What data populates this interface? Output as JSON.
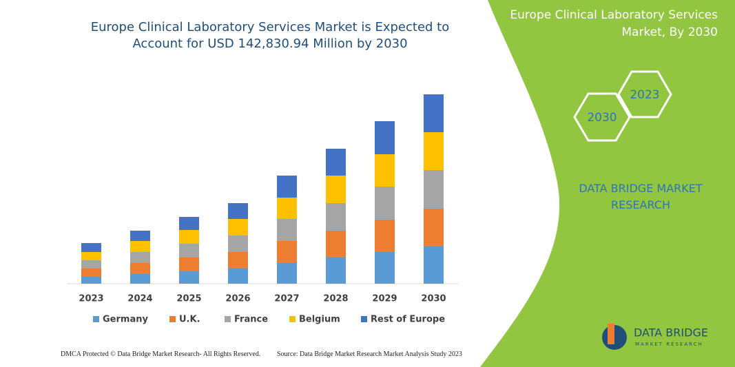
{
  "chart_data": {
    "type": "stacked-bar",
    "title": "Europe Clinical Laboratory Services Market is Expected to Account for USD 142,830.94 Million by 2030",
    "categories": [
      "2023",
      "2024",
      "2025",
      "2026",
      "2027",
      "2028",
      "2029",
      "2030"
    ],
    "series": [
      {
        "name": "Germany",
        "color": "#5b9bd5",
        "values": [
          10,
          14,
          18,
          22,
          30,
          38,
          46,
          54
        ]
      },
      {
        "name": "U.K.",
        "color": "#ed7d31",
        "values": [
          12,
          16,
          20,
          24,
          32,
          39,
          47,
          55
        ]
      },
      {
        "name": "France",
        "color": "#a5a5a5",
        "values": [
          12,
          16,
          20,
          24,
          32,
          40,
          48,
          56
        ]
      },
      {
        "name": "Belgium",
        "color": "#ffc000",
        "values": [
          12,
          16,
          20,
          24,
          31,
          40,
          47,
          55
        ]
      },
      {
        "name": "Rest of Europe",
        "color": "#4472c4",
        "values": [
          13,
          15,
          19,
          23,
          32,
          39,
          48,
          55
        ]
      }
    ],
    "ylim": [
      0,
      300
    ]
  },
  "panel": {
    "title": "Europe Clinical Laboratory Services Market, By 2030",
    "hex_back": "2023",
    "hex_front": "2030",
    "brand": "DATA BRIDGE MARKET RESEARCH",
    "logo_name": "DATA BRIDGE",
    "logo_sub": "MARKET RESEARCH"
  },
  "footer": {
    "left": "DMCA Protected © Data Bridge Market Research- All Rights Reserved.",
    "right": "Source: Data Bridge Market Research Market Analysis Study 2023"
  }
}
